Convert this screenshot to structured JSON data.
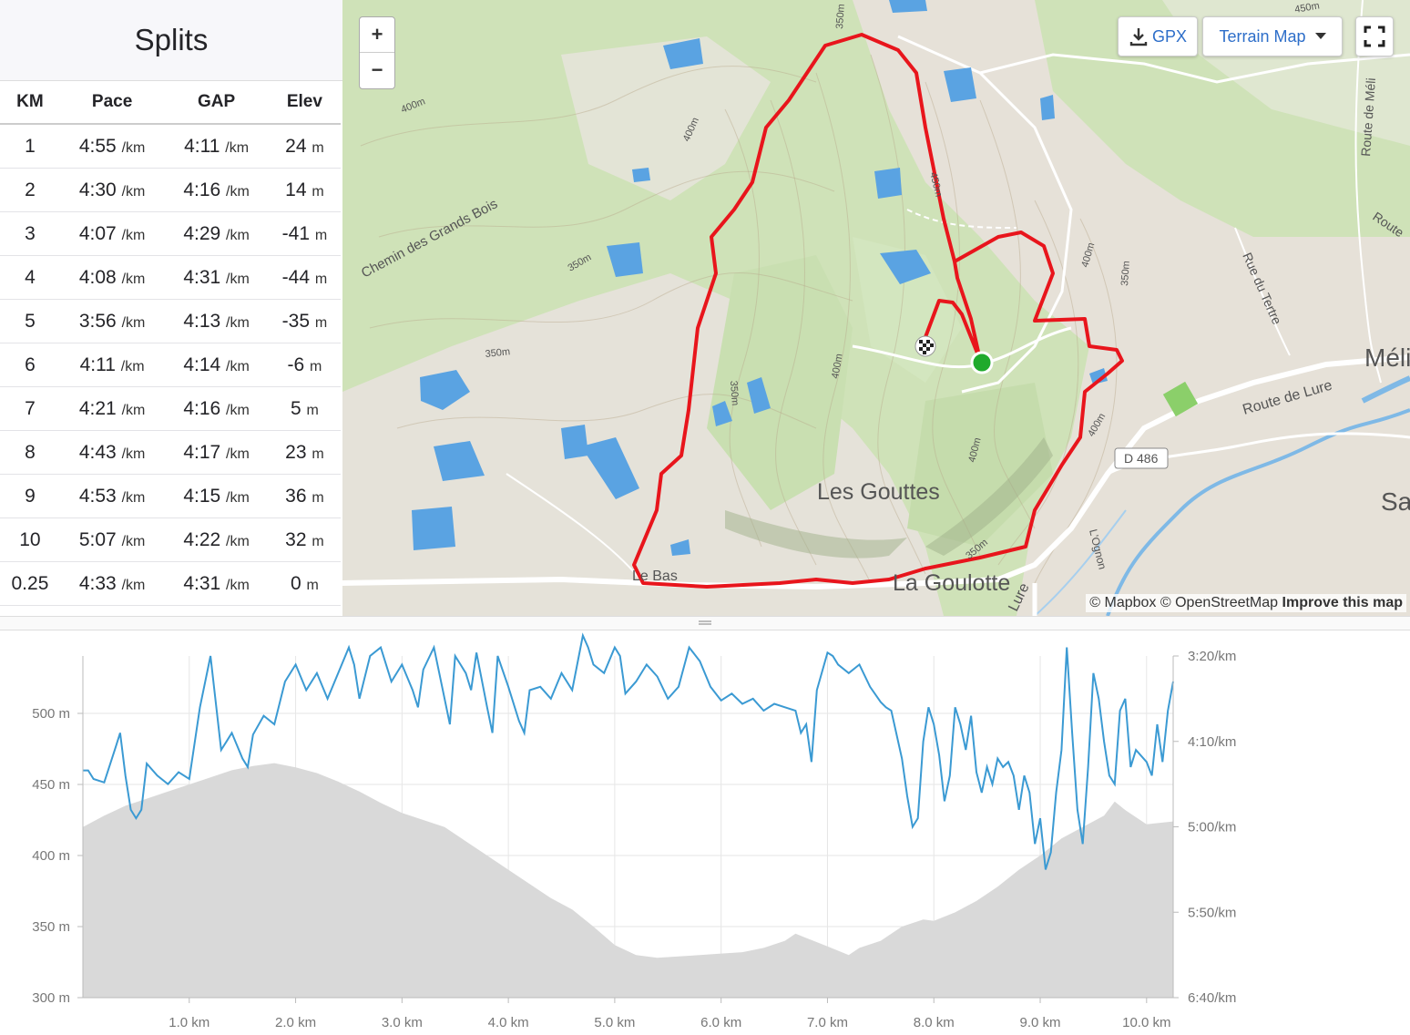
{
  "splits": {
    "title": "Splits",
    "columns": [
      "KM",
      "Pace",
      "GAP",
      "Elev"
    ],
    "pace_unit": "/km",
    "elev_unit": "m",
    "rows": [
      {
        "km": "1",
        "pace": "4:55",
        "gap": "4:11",
        "elev": "24"
      },
      {
        "km": "2",
        "pace": "4:30",
        "gap": "4:16",
        "elev": "14"
      },
      {
        "km": "3",
        "pace": "4:07",
        "gap": "4:29",
        "elev": "-41"
      },
      {
        "km": "4",
        "pace": "4:08",
        "gap": "4:31",
        "elev": "-44"
      },
      {
        "km": "5",
        "pace": "3:56",
        "gap": "4:13",
        "elev": "-35"
      },
      {
        "km": "6",
        "pace": "4:11",
        "gap": "4:14",
        "elev": "-6"
      },
      {
        "km": "7",
        "pace": "4:21",
        "gap": "4:16",
        "elev": "5"
      },
      {
        "km": "8",
        "pace": "4:43",
        "gap": "4:17",
        "elev": "23"
      },
      {
        "km": "9",
        "pace": "4:53",
        "gap": "4:15",
        "elev": "36"
      },
      {
        "km": "10",
        "pace": "5:07",
        "gap": "4:22",
        "elev": "32"
      },
      {
        "km": "0.25",
        "pace": "4:33",
        "gap": "4:31",
        "elev": "0"
      }
    ]
  },
  "map": {
    "zoom_in": "+",
    "zoom_out": "−",
    "gpx_label": "GPX",
    "map_type_label": "Terrain Map",
    "attribution": "© Mapbox © OpenStreetMap",
    "improve_label": "Improve this map",
    "places": [
      {
        "name": "Les Gouttes",
        "kind": "place"
      },
      {
        "name": "La Goulotte",
        "kind": "place"
      },
      {
        "name": "Le Bas",
        "kind": "place"
      },
      {
        "name": "Méli",
        "kind": "place"
      },
      {
        "name": "Sa",
        "kind": "place"
      },
      {
        "name": "Chemin des Grands Bois",
        "kind": "road"
      },
      {
        "name": "Route de Lure",
        "kind": "road"
      },
      {
        "name": "Rue du Tertre",
        "kind": "road"
      },
      {
        "name": "Route de Méli",
        "kind": "road"
      },
      {
        "name": "Route",
        "kind": "road"
      },
      {
        "name": "D 486",
        "kind": "shield"
      },
      {
        "name": "L'Ognon",
        "kind": "river"
      },
      {
        "name": "Lure",
        "kind": "road"
      }
    ],
    "contour_labels": [
      "350m",
      "400m",
      "450m",
      "400m",
      "350m",
      "350m",
      "400m",
      "350m",
      "400m",
      "450m",
      "400m",
      "350m",
      "350m",
      "400m"
    ],
    "colors": {
      "route": "#e8151c",
      "water": "#5aa3e2",
      "forest": "#bcd8a0",
      "open": "#e6e1da",
      "road": "#ffffff",
      "start": "#1faa2c"
    }
  },
  "chart_data": {
    "type": "line",
    "x_label_ticks": [
      "1.0 km",
      "2.0 km",
      "3.0 km",
      "4.0 km",
      "5.0 km",
      "6.0 km",
      "7.0 km",
      "8.0 km",
      "9.0 km",
      "10.0 km"
    ],
    "y_left_ticks": [
      "500 m",
      "450 m",
      "400 m",
      "350 m",
      "300 m"
    ],
    "y_right_ticks": [
      "3:20/km",
      "4:10/km",
      "5:00/km",
      "5:50/km",
      "6:40/km"
    ],
    "xlim": [
      0,
      10.25
    ],
    "ylim_elevation": [
      300,
      540
    ],
    "ylim_pace_seconds": [
      200,
      400
    ],
    "series": [
      {
        "type": "area",
        "color": "#d9d9d9",
        "points": [
          [
            0,
            420
          ],
          [
            0.2,
            428
          ],
          [
            0.4,
            435
          ],
          [
            0.6,
            440
          ],
          [
            0.8,
            445
          ],
          [
            1.0,
            450
          ],
          [
            1.2,
            455
          ],
          [
            1.4,
            460
          ],
          [
            1.6,
            463
          ],
          [
            1.8,
            465
          ],
          [
            2.0,
            462
          ],
          [
            2.2,
            458
          ],
          [
            2.4,
            452
          ],
          [
            2.6,
            445
          ],
          [
            2.8,
            437
          ],
          [
            3.0,
            430
          ],
          [
            3.2,
            425
          ],
          [
            3.4,
            420
          ],
          [
            3.6,
            410
          ],
          [
            3.8,
            400
          ],
          [
            4.0,
            390
          ],
          [
            4.2,
            380
          ],
          [
            4.4,
            370
          ],
          [
            4.6,
            362
          ],
          [
            4.8,
            350
          ],
          [
            5.0,
            337
          ],
          [
            5.2,
            330
          ],
          [
            5.4,
            328
          ],
          [
            5.6,
            329
          ],
          [
            5.8,
            330
          ],
          [
            6.0,
            331
          ],
          [
            6.2,
            332
          ],
          [
            6.4,
            335
          ],
          [
            6.6,
            340
          ],
          [
            6.7,
            345
          ],
          [
            6.8,
            342
          ],
          [
            7.0,
            336
          ],
          [
            7.2,
            330
          ],
          [
            7.3,
            335
          ],
          [
            7.5,
            340
          ],
          [
            7.7,
            350
          ],
          [
            7.9,
            355
          ],
          [
            8.0,
            354
          ],
          [
            8.2,
            360
          ],
          [
            8.4,
            368
          ],
          [
            8.6,
            378
          ],
          [
            8.8,
            390
          ],
          [
            9.0,
            400
          ],
          [
            9.2,
            412
          ],
          [
            9.4,
            420
          ],
          [
            9.6,
            428
          ],
          [
            9.7,
            438
          ],
          [
            9.8,
            432
          ],
          [
            10.0,
            422
          ],
          [
            10.25,
            424
          ]
        ]
      },
      {
        "type": "line",
        "color": "#3b9ad3",
        "points": [
          [
            0,
            267
          ],
          [
            0.05,
            267
          ],
          [
            0.1,
            272
          ],
          [
            0.2,
            274
          ],
          [
            0.3,
            255
          ],
          [
            0.35,
            245
          ],
          [
            0.4,
            270
          ],
          [
            0.45,
            290
          ],
          [
            0.5,
            295
          ],
          [
            0.55,
            290
          ],
          [
            0.6,
            263
          ],
          [
            0.7,
            270
          ],
          [
            0.8,
            275
          ],
          [
            0.9,
            268
          ],
          [
            1.0,
            272
          ],
          [
            1.1,
            230
          ],
          [
            1.2,
            200
          ],
          [
            1.3,
            255
          ],
          [
            1.35,
            250
          ],
          [
            1.4,
            245
          ],
          [
            1.5,
            260
          ],
          [
            1.55,
            265
          ],
          [
            1.6,
            246
          ],
          [
            1.7,
            235
          ],
          [
            1.8,
            240
          ],
          [
            1.9,
            215
          ],
          [
            2.0,
            205
          ],
          [
            2.1,
            220
          ],
          [
            2.2,
            210
          ],
          [
            2.3,
            225
          ],
          [
            2.4,
            210
          ],
          [
            2.5,
            195
          ],
          [
            2.55,
            205
          ],
          [
            2.6,
            225
          ],
          [
            2.7,
            200
          ],
          [
            2.8,
            195
          ],
          [
            2.9,
            215
          ],
          [
            3.0,
            205
          ],
          [
            3.1,
            220
          ],
          [
            3.15,
            230
          ],
          [
            3.2,
            208
          ],
          [
            3.3,
            195
          ],
          [
            3.4,
            225
          ],
          [
            3.45,
            240
          ],
          [
            3.5,
            200
          ],
          [
            3.55,
            205
          ],
          [
            3.6,
            210
          ],
          [
            3.65,
            220
          ],
          [
            3.7,
            198
          ],
          [
            3.8,
            230
          ],
          [
            3.85,
            245
          ],
          [
            3.9,
            200
          ],
          [
            4.0,
            218
          ],
          [
            4.1,
            238
          ],
          [
            4.15,
            245
          ],
          [
            4.2,
            220
          ],
          [
            4.3,
            218
          ],
          [
            4.4,
            225
          ],
          [
            4.5,
            210
          ],
          [
            4.6,
            220
          ],
          [
            4.7,
            188
          ],
          [
            4.75,
            195
          ],
          [
            4.8,
            205
          ],
          [
            4.9,
            210
          ],
          [
            5.0,
            195
          ],
          [
            5.05,
            200
          ],
          [
            5.1,
            222
          ],
          [
            5.2,
            215
          ],
          [
            5.3,
            205
          ],
          [
            5.4,
            212
          ],
          [
            5.5,
            225
          ],
          [
            5.6,
            218
          ],
          [
            5.7,
            195
          ],
          [
            5.8,
            203
          ],
          [
            5.9,
            218
          ],
          [
            6.0,
            226
          ],
          [
            6.1,
            222
          ],
          [
            6.2,
            228
          ],
          [
            6.3,
            225
          ],
          [
            6.4,
            232
          ],
          [
            6.5,
            228
          ],
          [
            6.6,
            230
          ],
          [
            6.7,
            232
          ],
          [
            6.75,
            245
          ],
          [
            6.8,
            240
          ],
          [
            6.85,
            262
          ],
          [
            6.9,
            220
          ],
          [
            7.0,
            198
          ],
          [
            7.05,
            200
          ],
          [
            7.1,
            205
          ],
          [
            7.2,
            210
          ],
          [
            7.3,
            205
          ],
          [
            7.4,
            218
          ],
          [
            7.5,
            227
          ],
          [
            7.55,
            230
          ],
          [
            7.6,
            232
          ],
          [
            7.7,
            260
          ],
          [
            7.75,
            282
          ],
          [
            7.8,
            300
          ],
          [
            7.85,
            295
          ],
          [
            7.9,
            250
          ],
          [
            7.95,
            230
          ],
          [
            8.0,
            240
          ],
          [
            8.05,
            258
          ],
          [
            8.1,
            285
          ],
          [
            8.15,
            270
          ],
          [
            8.2,
            230
          ],
          [
            8.25,
            240
          ],
          [
            8.3,
            255
          ],
          [
            8.35,
            235
          ],
          [
            8.4,
            268
          ],
          [
            8.45,
            280
          ],
          [
            8.5,
            265
          ],
          [
            8.55,
            275
          ],
          [
            8.6,
            260
          ],
          [
            8.65,
            265
          ],
          [
            8.7,
            262
          ],
          [
            8.75,
            270
          ],
          [
            8.8,
            290
          ],
          [
            8.85,
            270
          ],
          [
            8.9,
            280
          ],
          [
            8.95,
            310
          ],
          [
            9.0,
            295
          ],
          [
            9.05,
            325
          ],
          [
            9.1,
            315
          ],
          [
            9.15,
            280
          ],
          [
            9.2,
            255
          ],
          [
            9.25,
            195
          ],
          [
            9.3,
            245
          ],
          [
            9.35,
            290
          ],
          [
            9.4,
            310
          ],
          [
            9.45,
            265
          ],
          [
            9.5,
            210
          ],
          [
            9.55,
            225
          ],
          [
            9.6,
            250
          ],
          [
            9.65,
            270
          ],
          [
            9.7,
            275
          ],
          [
            9.75,
            232
          ],
          [
            9.8,
            225
          ],
          [
            9.85,
            265
          ],
          [
            9.9,
            255
          ],
          [
            10.0,
            262
          ],
          [
            10.05,
            270
          ],
          [
            10.1,
            240
          ],
          [
            10.15,
            262
          ],
          [
            10.2,
            232
          ],
          [
            10.25,
            215
          ]
        ]
      }
    ]
  }
}
